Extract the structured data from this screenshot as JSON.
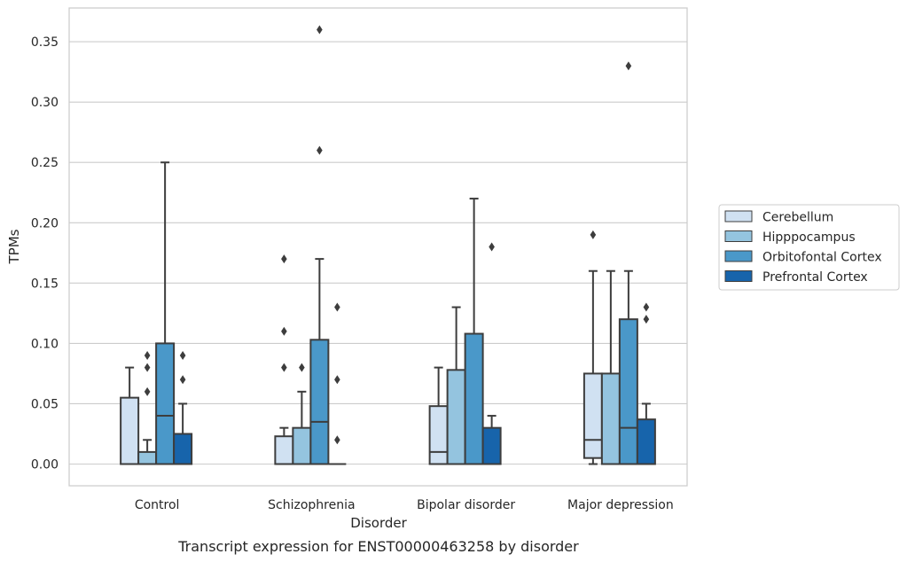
{
  "chart_data": {
    "type": "box",
    "caption": "Transcript expression for ENST00000463258 by disorder",
    "xlabel": "Disorder",
    "ylabel": "TPMs",
    "ylim": [
      -0.018,
      0.378
    ],
    "yticks": [
      0.0,
      0.05,
      0.1,
      0.15,
      0.2,
      0.25,
      0.3,
      0.35
    ],
    "ytick_labels": [
      "0.00",
      "0.05",
      "0.10",
      "0.15",
      "0.20",
      "0.25",
      "0.30",
      "0.35"
    ],
    "grid": "horizontal",
    "legend_position": "right",
    "categories": [
      "Control",
      "Schizophrenia",
      "Bipolar disorder",
      "Major depression"
    ],
    "series": [
      {
        "name": "Cerebellum",
        "color": "#d0e1f2",
        "boxes": [
          {
            "whislo": 0.0,
            "q1": 0.0,
            "med": 0.0,
            "q3": 0.055,
            "whishi": 0.08,
            "fliers": []
          },
          {
            "whislo": 0.0,
            "q1": 0.0,
            "med": 0.0,
            "q3": 0.023,
            "whishi": 0.03,
            "fliers": [
              0.08,
              0.11,
              0.17
            ]
          },
          {
            "whislo": 0.0,
            "q1": 0.0,
            "med": 0.01,
            "q3": 0.048,
            "whishi": 0.08,
            "fliers": []
          },
          {
            "whislo": 0.0,
            "q1": 0.005,
            "med": 0.02,
            "q3": 0.075,
            "whishi": 0.16,
            "fliers": [
              0.19
            ]
          }
        ]
      },
      {
        "name": "Hipppocampus",
        "color": "#94c4df",
        "boxes": [
          {
            "whislo": 0.0,
            "q1": 0.0,
            "med": 0.0,
            "q3": 0.01,
            "whishi": 0.02,
            "fliers": [
              0.06,
              0.08,
              0.09
            ]
          },
          {
            "whislo": 0.0,
            "q1": 0.0,
            "med": 0.0,
            "q3": 0.03,
            "whishi": 0.06,
            "fliers": [
              0.08
            ]
          },
          {
            "whislo": 0.0,
            "q1": 0.0,
            "med": 0.0,
            "q3": 0.078,
            "whishi": 0.13,
            "fliers": []
          },
          {
            "whislo": 0.0,
            "q1": 0.0,
            "med": 0.0,
            "q3": 0.075,
            "whishi": 0.16,
            "fliers": []
          }
        ]
      },
      {
        "name": "Orbitofontal Cortex",
        "color": "#4a98c9",
        "boxes": [
          {
            "whislo": 0.0,
            "q1": 0.0,
            "med": 0.04,
            "q3": 0.1,
            "whishi": 0.25,
            "fliers": []
          },
          {
            "whislo": 0.0,
            "q1": 0.0,
            "med": 0.035,
            "q3": 0.103,
            "whishi": 0.17,
            "fliers": [
              0.26,
              0.36
            ]
          },
          {
            "whislo": 0.0,
            "q1": 0.0,
            "med": 0.0,
            "q3": 0.108,
            "whishi": 0.22,
            "fliers": []
          },
          {
            "whislo": 0.0,
            "q1": 0.0,
            "med": 0.03,
            "q3": 0.12,
            "whishi": 0.16,
            "fliers": [
              0.33
            ]
          }
        ]
      },
      {
        "name": "Prefrontal Cortex",
        "color": "#1764ab",
        "boxes": [
          {
            "whislo": 0.0,
            "q1": 0.0,
            "med": 0.0,
            "q3": 0.025,
            "whishi": 0.05,
            "fliers": [
              0.07,
              0.09
            ]
          },
          {
            "whislo": 0.0,
            "q1": 0.0,
            "med": 0.0,
            "q3": 0.0,
            "whishi": 0.0,
            "fliers": [
              0.02,
              0.07,
              0.13
            ]
          },
          {
            "whislo": 0.0,
            "q1": 0.0,
            "med": 0.0,
            "q3": 0.03,
            "whishi": 0.04,
            "fliers": [
              0.18
            ]
          },
          {
            "whislo": 0.0,
            "q1": 0.0,
            "med": 0.0,
            "q3": 0.037,
            "whishi": 0.05,
            "fliers": [
              0.12,
              0.13
            ]
          }
        ]
      }
    ]
  }
}
